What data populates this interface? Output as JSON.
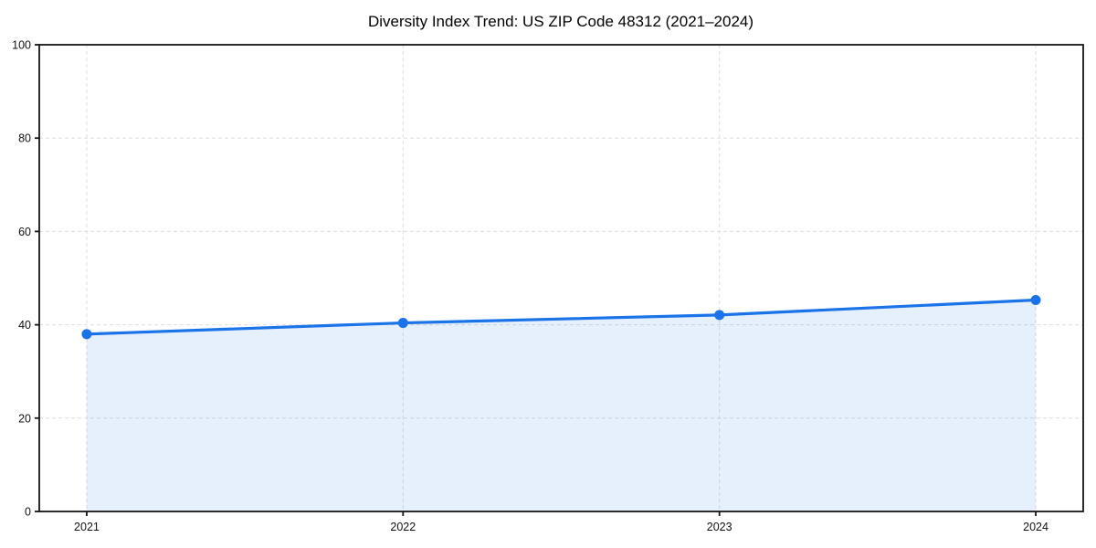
{
  "chart_data": {
    "type": "area",
    "title": "Diversity Index Trend: US ZIP Code 48312 (2021–2024)",
    "categories": [
      "2021",
      "2022",
      "2023",
      "2024"
    ],
    "series": [
      {
        "name": "Diversity Index",
        "values": [
          38.0,
          40.4,
          42.1,
          45.3
        ]
      }
    ],
    "xlabel": "",
    "ylabel": "",
    "ylim": [
      0,
      100
    ],
    "yticks": [
      0,
      20,
      40,
      60,
      80,
      100
    ],
    "grid": "dashed-both-axes",
    "legend": "none",
    "marker": "circle",
    "colors": {
      "line": "#1a73e8",
      "marker": "#1a73e8",
      "fill": "rgba(26,115,232,0.11)",
      "grid": "#dedede",
      "spine": "#141414",
      "text": "#000000"
    }
  }
}
